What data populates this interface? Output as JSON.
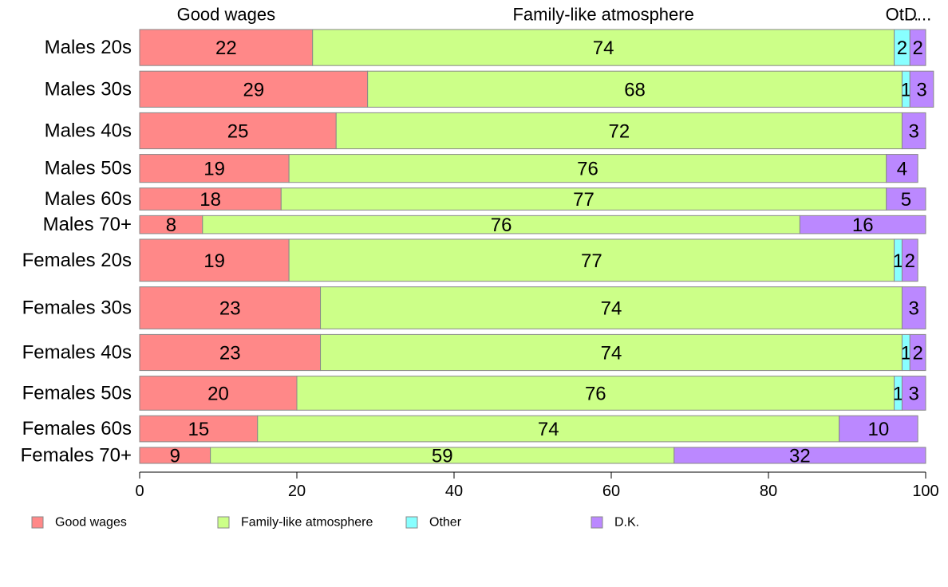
{
  "chart_data": {
    "type": "bar",
    "orientation": "horizontal",
    "stacked": true,
    "categories": [
      "Males 20s",
      "Males 30s",
      "Males 40s",
      "Males 50s",
      "Males 60s",
      "Males 70+",
      "Females 20s",
      "Females 30s",
      "Females 40s",
      "Females 50s",
      "Females 60s",
      "Females 70+"
    ],
    "bar_width_weights": [
      0.9,
      0.9,
      0.9,
      0.7,
      0.55,
      0.45,
      1.05,
      1.05,
      0.9,
      0.85,
      0.65,
      0.4
    ],
    "series": [
      {
        "name": "Good wages",
        "color": "#ff8888",
        "values": [
          22,
          29,
          25,
          19,
          18,
          8,
          19,
          23,
          23,
          20,
          15,
          9
        ]
      },
      {
        "name": "Family-like atmosphere",
        "color": "#ccff88",
        "values": [
          74,
          68,
          72,
          76,
          77,
          76,
          77,
          74,
          74,
          76,
          74,
          59
        ]
      },
      {
        "name": "Other",
        "color": "#88ffff",
        "values": [
          2,
          1,
          0,
          0,
          0,
          0,
          1,
          0,
          1,
          1,
          0,
          0
        ]
      },
      {
        "name": "D.K.",
        "color": "#bb88ff",
        "values": [
          2,
          3,
          3,
          4,
          5,
          16,
          2,
          3,
          2,
          3,
          10,
          32
        ]
      }
    ],
    "top_labels": [
      "Good wages",
      "Family-like atmosphere",
      "Ot...",
      "D..."
    ],
    "xticks": [
      0,
      20,
      40,
      60,
      80,
      100
    ],
    "xlim": [
      0,
      100
    ],
    "grid": false,
    "legend_position": "bottom"
  }
}
